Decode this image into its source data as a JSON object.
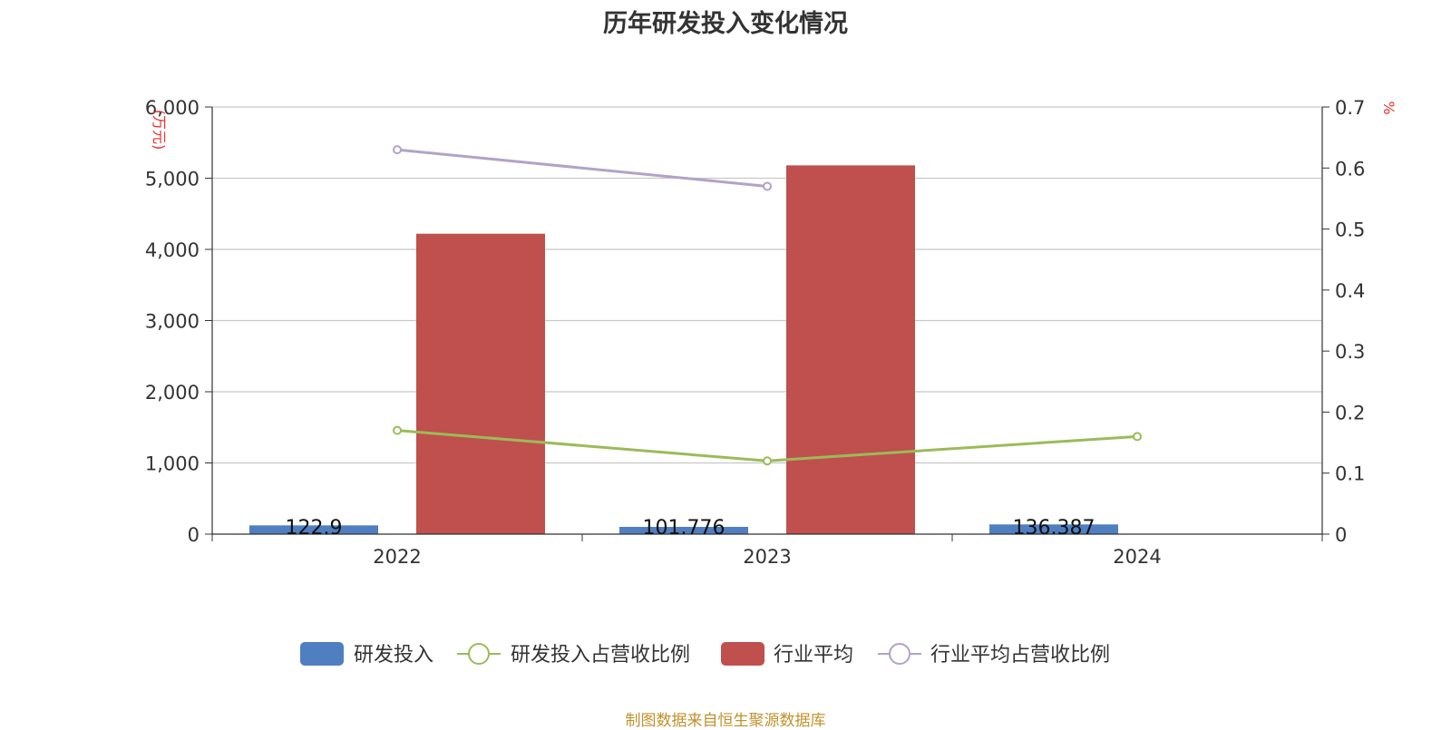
{
  "chart_data": {
    "type": "bar",
    "title": "历年研发投入变化情况",
    "categories": [
      "2022",
      "2023",
      "2024"
    ],
    "y_left": {
      "unit": "(万元)",
      "ylim": [
        0,
        6000
      ],
      "ticks": [
        0,
        1000,
        2000,
        3000,
        4000,
        5000,
        6000
      ],
      "tick_labels": [
        "0",
        "1,000",
        "2,000",
        "3,000",
        "4,000",
        "5,000",
        "6,000"
      ]
    },
    "y_right": {
      "unit": "%",
      "ylim": [
        0,
        0.7
      ],
      "ticks": [
        0,
        0.1,
        0.2,
        0.3,
        0.4,
        0.5,
        0.6,
        0.7
      ],
      "tick_labels": [
        "0",
        "0.1",
        "0.2",
        "0.3",
        "0.4",
        "0.5",
        "0.6",
        "0.7"
      ]
    },
    "series": [
      {
        "name": "研发投入",
        "kind": "bar",
        "axis": "left",
        "color": "#4f7fc0",
        "values": [
          122.9,
          101.776,
          136.387
        ],
        "labels": [
          "122.9",
          "101.776",
          "136.387"
        ]
      },
      {
        "name": "研发投入占营收比例",
        "kind": "line",
        "axis": "right",
        "color": "#9bbb59",
        "values": [
          0.17,
          0.12,
          0.16
        ]
      },
      {
        "name": "行业平均",
        "kind": "bar",
        "axis": "left",
        "color": "#c0504d",
        "values": [
          4220,
          5180,
          null
        ]
      },
      {
        "name": "行业平均占营收比例",
        "kind": "line",
        "axis": "right",
        "color": "#b3a2c7",
        "values": [
          0.63,
          0.57,
          null
        ]
      }
    ],
    "grid": true,
    "legend_position": "bottom"
  },
  "source_note": "制图数据来自恒生聚源数据库"
}
